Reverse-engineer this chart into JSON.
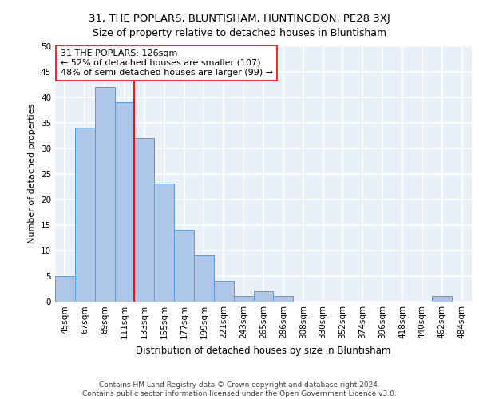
{
  "title1": "31, THE POPLARS, BLUNTISHAM, HUNTINGDON, PE28 3XJ",
  "title2": "Size of property relative to detached houses in Bluntisham",
  "xlabel": "Distribution of detached houses by size in Bluntisham",
  "ylabel": "Number of detached properties",
  "bin_labels": [
    "45sqm",
    "67sqm",
    "89sqm",
    "111sqm",
    "133sqm",
    "155sqm",
    "177sqm",
    "199sqm",
    "221sqm",
    "243sqm",
    "265sqm",
    "286sqm",
    "308sqm",
    "330sqm",
    "352sqm",
    "374sqm",
    "396sqm",
    "418sqm",
    "440sqm",
    "462sqm",
    "484sqm"
  ],
  "bar_values": [
    5,
    34,
    42,
    39,
    32,
    23,
    14,
    9,
    4,
    1,
    2,
    1,
    0,
    0,
    0,
    0,
    0,
    0,
    0,
    1,
    0
  ],
  "bar_color": "#aec6e8",
  "bar_edge_color": "#5b9bd5",
  "vline_x_index": 3.5,
  "annotation_text": "31 THE POPLARS: 126sqm\n← 52% of detached houses are smaller (107)\n48% of semi-detached houses are larger (99) →",
  "annotation_box_color": "white",
  "annotation_box_edge": "red",
  "vline_color": "red",
  "ylim": [
    0,
    50
  ],
  "yticks": [
    0,
    5,
    10,
    15,
    20,
    25,
    30,
    35,
    40,
    45,
    50
  ],
  "footer_text": "Contains HM Land Registry data © Crown copyright and database right 2024.\nContains public sector information licensed under the Open Government Licence v3.0.",
  "bg_color": "#eaf0f8",
  "grid_color": "white",
  "title1_fontsize": 9.5,
  "title2_fontsize": 9,
  "xlabel_fontsize": 8.5,
  "ylabel_fontsize": 8,
  "tick_fontsize": 7.5,
  "annotation_fontsize": 8,
  "footer_fontsize": 6.5
}
